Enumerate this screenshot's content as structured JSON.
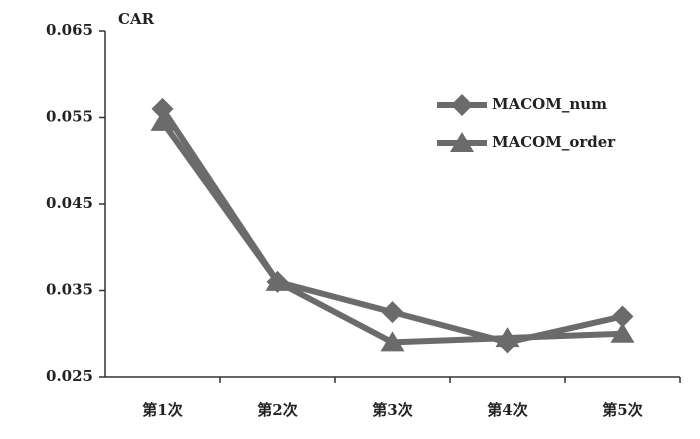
{
  "chart_data": {
    "type": "line",
    "y_label": "CAR",
    "categories": [
      "第1次",
      "第2次",
      "第3次",
      "第4次",
      "第5次"
    ],
    "series": [
      {
        "name": "MACOM_num",
        "color": "#6b6b6b",
        "marker": "diamond",
        "values": [
          0.056,
          0.036,
          0.0325,
          0.029,
          0.032
        ]
      },
      {
        "name": "MACOM_order",
        "color": "#6b6b6b",
        "marker": "triangle",
        "values": [
          0.0545,
          0.036,
          0.029,
          0.0295,
          0.03
        ]
      }
    ],
    "ylim": [
      0.025,
      0.065
    ],
    "yticks": [
      0.025,
      0.035,
      0.045,
      0.055,
      0.065
    ],
    "grid": false,
    "legend": "upper right"
  }
}
